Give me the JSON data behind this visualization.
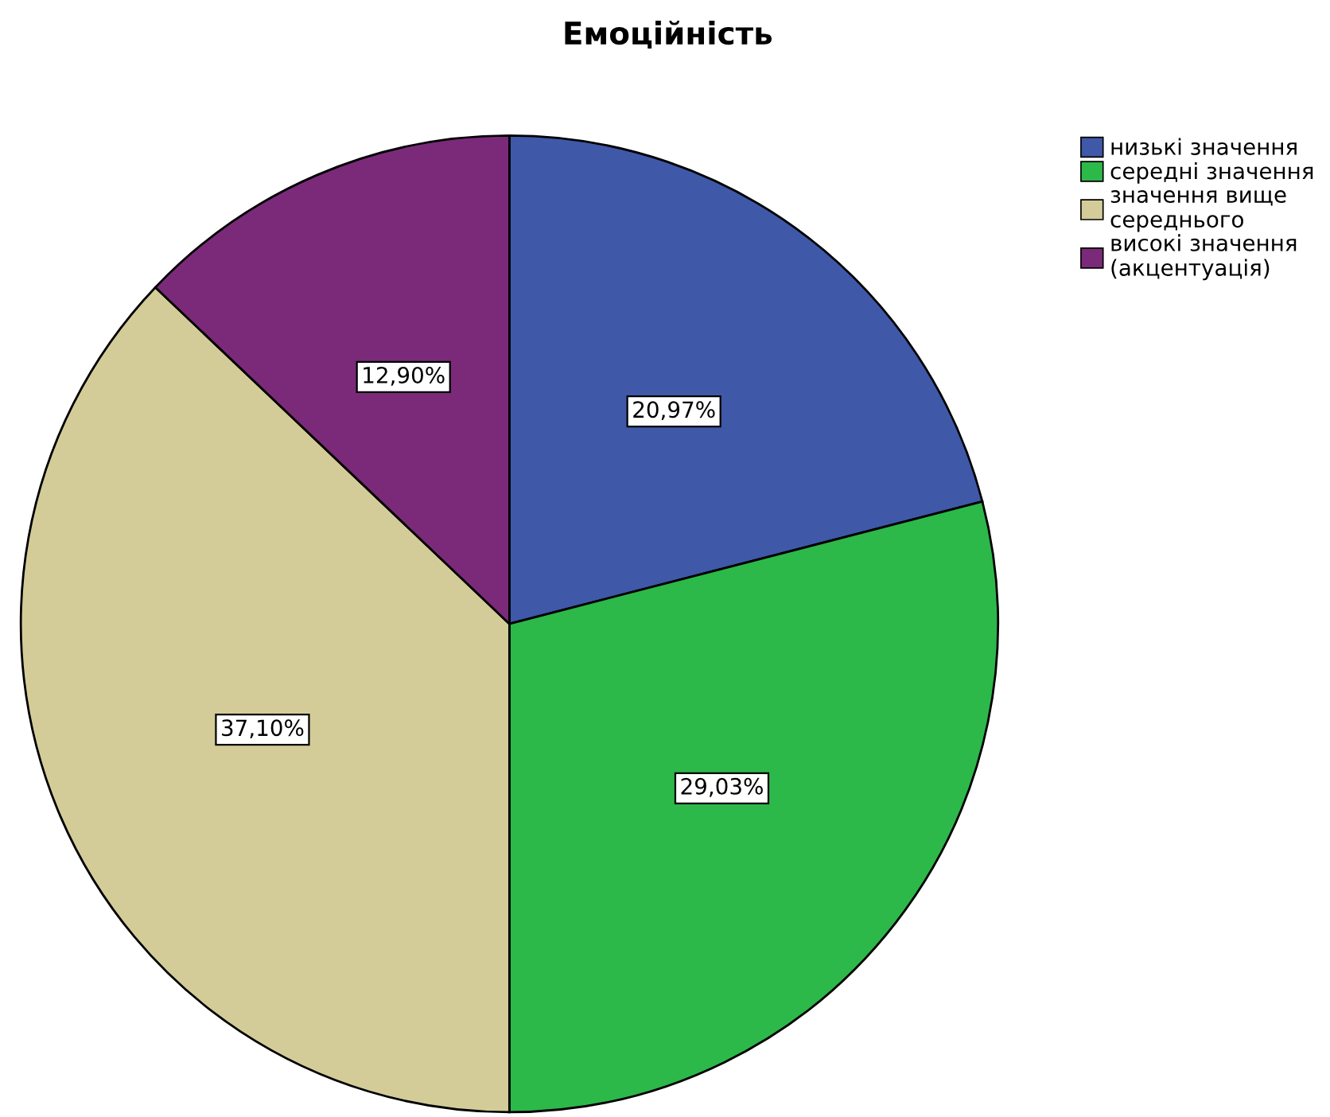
{
  "chart_data": {
    "type": "pie",
    "title": "Емоційність",
    "categories": [
      "низькі значення",
      "середні значення",
      "значення вище\nсереднього",
      "високі значення\n(акцентуація)"
    ],
    "values": [
      20.97,
      29.03,
      37.1,
      12.9
    ],
    "colors": [
      "#3f58a8",
      "#2db84a",
      "#d4cc98",
      "#7b2a7a"
    ],
    "value_labels": [
      "20,97%",
      "29,03%",
      "37,10%",
      "12,90%"
    ],
    "legend": "top right"
  }
}
